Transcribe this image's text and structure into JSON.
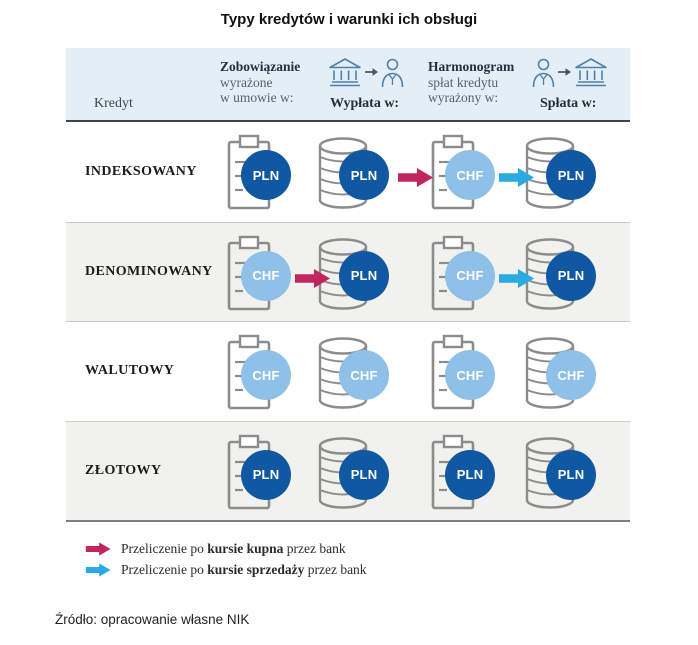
{
  "title": "Typy kredytów i warunki ich obsługi",
  "colors": {
    "dark_blue": "#1158a2",
    "light_blue": "#8fc0e8",
    "pink": "#c2265f",
    "cyan": "#29abe2",
    "header_bg": "#e4eef6",
    "alt_row_bg": "#f1f1ee",
    "icon_gray": "#8c8c8c",
    "header_icon_blue": "#4d80ab"
  },
  "icons": [
    "clipboard-icon",
    "coins-icon",
    "bank-icon",
    "person-icon",
    "transfer-arrow-icon",
    "pink-arrow-icon",
    "cyan-arrow-icon"
  ],
  "table": {
    "header": {
      "kredyt": "Kredyt",
      "zobowiazanie": {
        "line1": "Zobowiązanie",
        "line2": "wyrażone",
        "line3": "w umowie w:"
      },
      "wyplata": {
        "label": "Wypłata w:",
        "icons": [
          "bank-icon",
          "transfer-arrow-icon",
          "person-icon"
        ]
      },
      "harmonogram": {
        "line1": "Harmonogram",
        "line2": "spłat kredytu",
        "line3": "wyrażony w:"
      },
      "splata": {
        "label": "Spłata w:",
        "icons": [
          "person-icon",
          "transfer-arrow-icon",
          "bank-icon"
        ]
      }
    },
    "rows": [
      {
        "label": "INDEKSOWANY",
        "cells": [
          {
            "icon": "clipboard",
            "currency": "PLN",
            "tone": "dark"
          },
          {
            "icon": "coins",
            "currency": "PLN",
            "tone": "dark"
          },
          {
            "icon": "clipboard",
            "currency": "CHF",
            "tone": "light"
          },
          {
            "icon": "coins",
            "currency": "PLN",
            "tone": "dark"
          }
        ],
        "arrows": [
          {
            "gap": 1,
            "color": "pink"
          },
          {
            "gap": 2,
            "color": "cyan"
          }
        ]
      },
      {
        "label": "DENOMINOWANY",
        "cells": [
          {
            "icon": "clipboard",
            "currency": "CHF",
            "tone": "light"
          },
          {
            "icon": "coins",
            "currency": "PLN",
            "tone": "dark"
          },
          {
            "icon": "clipboard",
            "currency": "CHF",
            "tone": "light"
          },
          {
            "icon": "coins",
            "currency": "PLN",
            "tone": "dark"
          }
        ],
        "arrows": [
          {
            "gap": 0,
            "color": "pink"
          },
          {
            "gap": 2,
            "color": "cyan"
          }
        ]
      },
      {
        "label": "WALUTOWY",
        "cells": [
          {
            "icon": "clipboard",
            "currency": "CHF",
            "tone": "light"
          },
          {
            "icon": "coins",
            "currency": "CHF",
            "tone": "light"
          },
          {
            "icon": "clipboard",
            "currency": "CHF",
            "tone": "light"
          },
          {
            "icon": "coins",
            "currency": "CHF",
            "tone": "light"
          }
        ],
        "arrows": []
      },
      {
        "label": "ZŁOTOWY",
        "cells": [
          {
            "icon": "clipboard",
            "currency": "PLN",
            "tone": "dark"
          },
          {
            "icon": "coins",
            "currency": "PLN",
            "tone": "dark"
          },
          {
            "icon": "clipboard",
            "currency": "PLN",
            "tone": "dark"
          },
          {
            "icon": "coins",
            "currency": "PLN",
            "tone": "dark"
          }
        ],
        "arrows": []
      }
    ]
  },
  "legend": [
    {
      "arrow": "pink",
      "prefix": "Przeliczenie po ",
      "bold": "kursie kupna",
      "suffix": " przez bank"
    },
    {
      "arrow": "cyan",
      "prefix": "Przeliczenie po ",
      "bold": "kursie sprzedaży",
      "suffix": " przez bank"
    }
  ],
  "source": "Źródło: opracowanie własne NIK"
}
